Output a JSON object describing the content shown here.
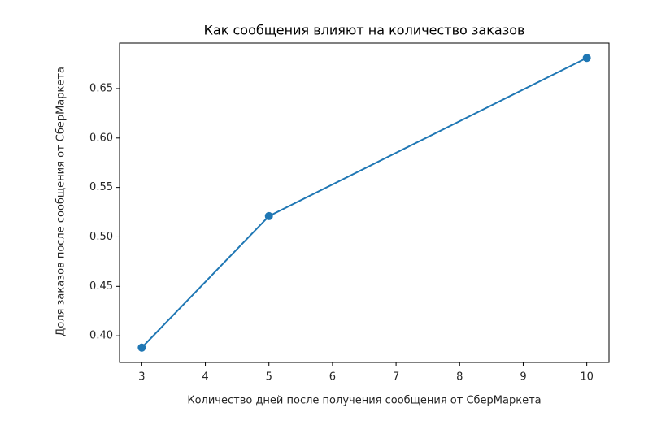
{
  "chart_data": {
    "type": "line",
    "title": "Как сообщения влияют на количество заказов",
    "x_label": "Количество дней после получения сообщения от СберМаркета",
    "y_label": "Доля заказов после сообщения от СберМаркета",
    "x": [
      3,
      5,
      10
    ],
    "series": [
      {
        "color": "#1f77b4",
        "values": [
          0.388,
          0.521,
          0.681
        ]
      }
    ],
    "xlim": [
      2.65,
      10.35
    ],
    "ylim": [
      0.373,
      0.696
    ],
    "xticks": [
      3,
      4,
      5,
      6,
      7,
      8,
      9,
      10
    ],
    "yticks": [
      {
        "value": 0.4,
        "label": "0.40"
      },
      0.45,
      {
        "value": 0.5,
        "label": "0.50"
      },
      0.55,
      {
        "value": 0.6,
        "label": "0.60"
      },
      0.65
    ],
    "grid": false
  }
}
